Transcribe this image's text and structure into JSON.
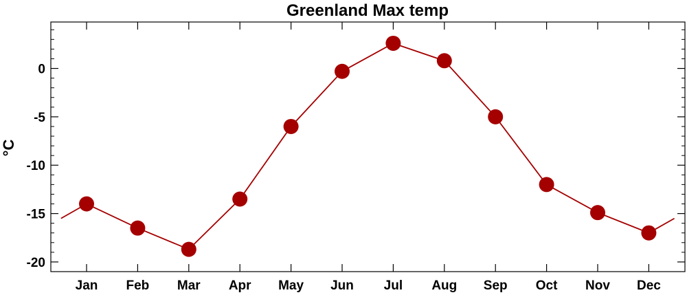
{
  "chart_data": {
    "type": "line",
    "title": "Greenland Max temp",
    "xlabel": "",
    "ylabel": "°C",
    "categories": [
      "Jan",
      "Feb",
      "Mar",
      "Apr",
      "May",
      "Jun",
      "Jul",
      "Aug",
      "Sep",
      "Oct",
      "Nov",
      "Dec"
    ],
    "series": [
      {
        "values": [
          -14.0,
          -16.5,
          -18.7,
          -13.5,
          -6.0,
          -0.3,
          2.6,
          0.8,
          -5.0,
          -12.0,
          -14.9,
          -17.0
        ]
      }
    ],
    "ylim": [
      -21.0,
      4.8
    ],
    "yticks": [
      0,
      -5,
      -10,
      -15,
      -20
    ],
    "ytick_labels": [
      "0",
      "-5",
      "-10",
      "-15",
      "-20"
    ],
    "line_color": "#a50000",
    "marker_color": "#a50000",
    "grid": false,
    "legend": "none"
  }
}
